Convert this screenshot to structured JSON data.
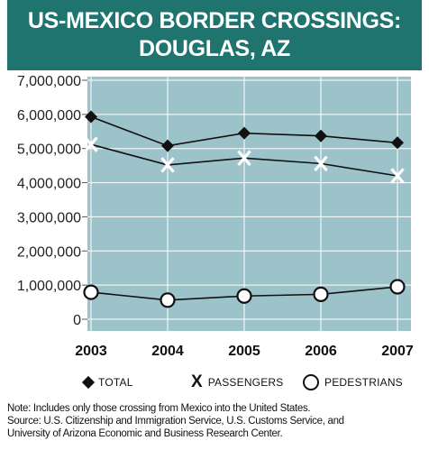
{
  "title": {
    "line1": "US-MEXICO BORDER CROSSINGS:",
    "line2": "DOUGLAS, AZ"
  },
  "colors": {
    "title_bg": "#1f7470",
    "plot_bg": "#9cc3c9",
    "grid": "#ffffff",
    "line": "#111111"
  },
  "chart_data": {
    "type": "line",
    "title": "US-MEXICO BORDER CROSSINGS: DOUGLAS, AZ",
    "x": [
      "2003",
      "2004",
      "2005",
      "2006",
      "2007"
    ],
    "series": [
      {
        "name": "TOTAL",
        "marker": "diamond",
        "values": [
          5930000,
          5080000,
          5450000,
          5370000,
          5170000
        ]
      },
      {
        "name": "PASSENGERS",
        "marker": "x",
        "values": [
          5120000,
          4520000,
          4720000,
          4560000,
          4200000
        ]
      },
      {
        "name": "PEDESTRIANS",
        "marker": "circle",
        "values": [
          790000,
          560000,
          680000,
          730000,
          950000
        ]
      }
    ],
    "yticks": [
      "7,000,000",
      "6,000,000",
      "5,000,000",
      "4,000,000",
      "3,000,000",
      "2,000,000",
      "1,000,000",
      "0"
    ],
    "ylim": [
      0,
      7000000
    ],
    "grid": true,
    "legend_position": "bottom"
  },
  "legend": {
    "total": "TOTAL",
    "passengers": "PASSENGERS",
    "pedestrians": "PEDESTRIANS"
  },
  "notes": {
    "line1": "Note: Includes only those crossing from Mexico into the United States.",
    "line2": "Source: U.S. Citizenship and Immigration Service, U.S. Customs Service, and",
    "line3": "University of Arizona Economic and Business Research Center."
  }
}
